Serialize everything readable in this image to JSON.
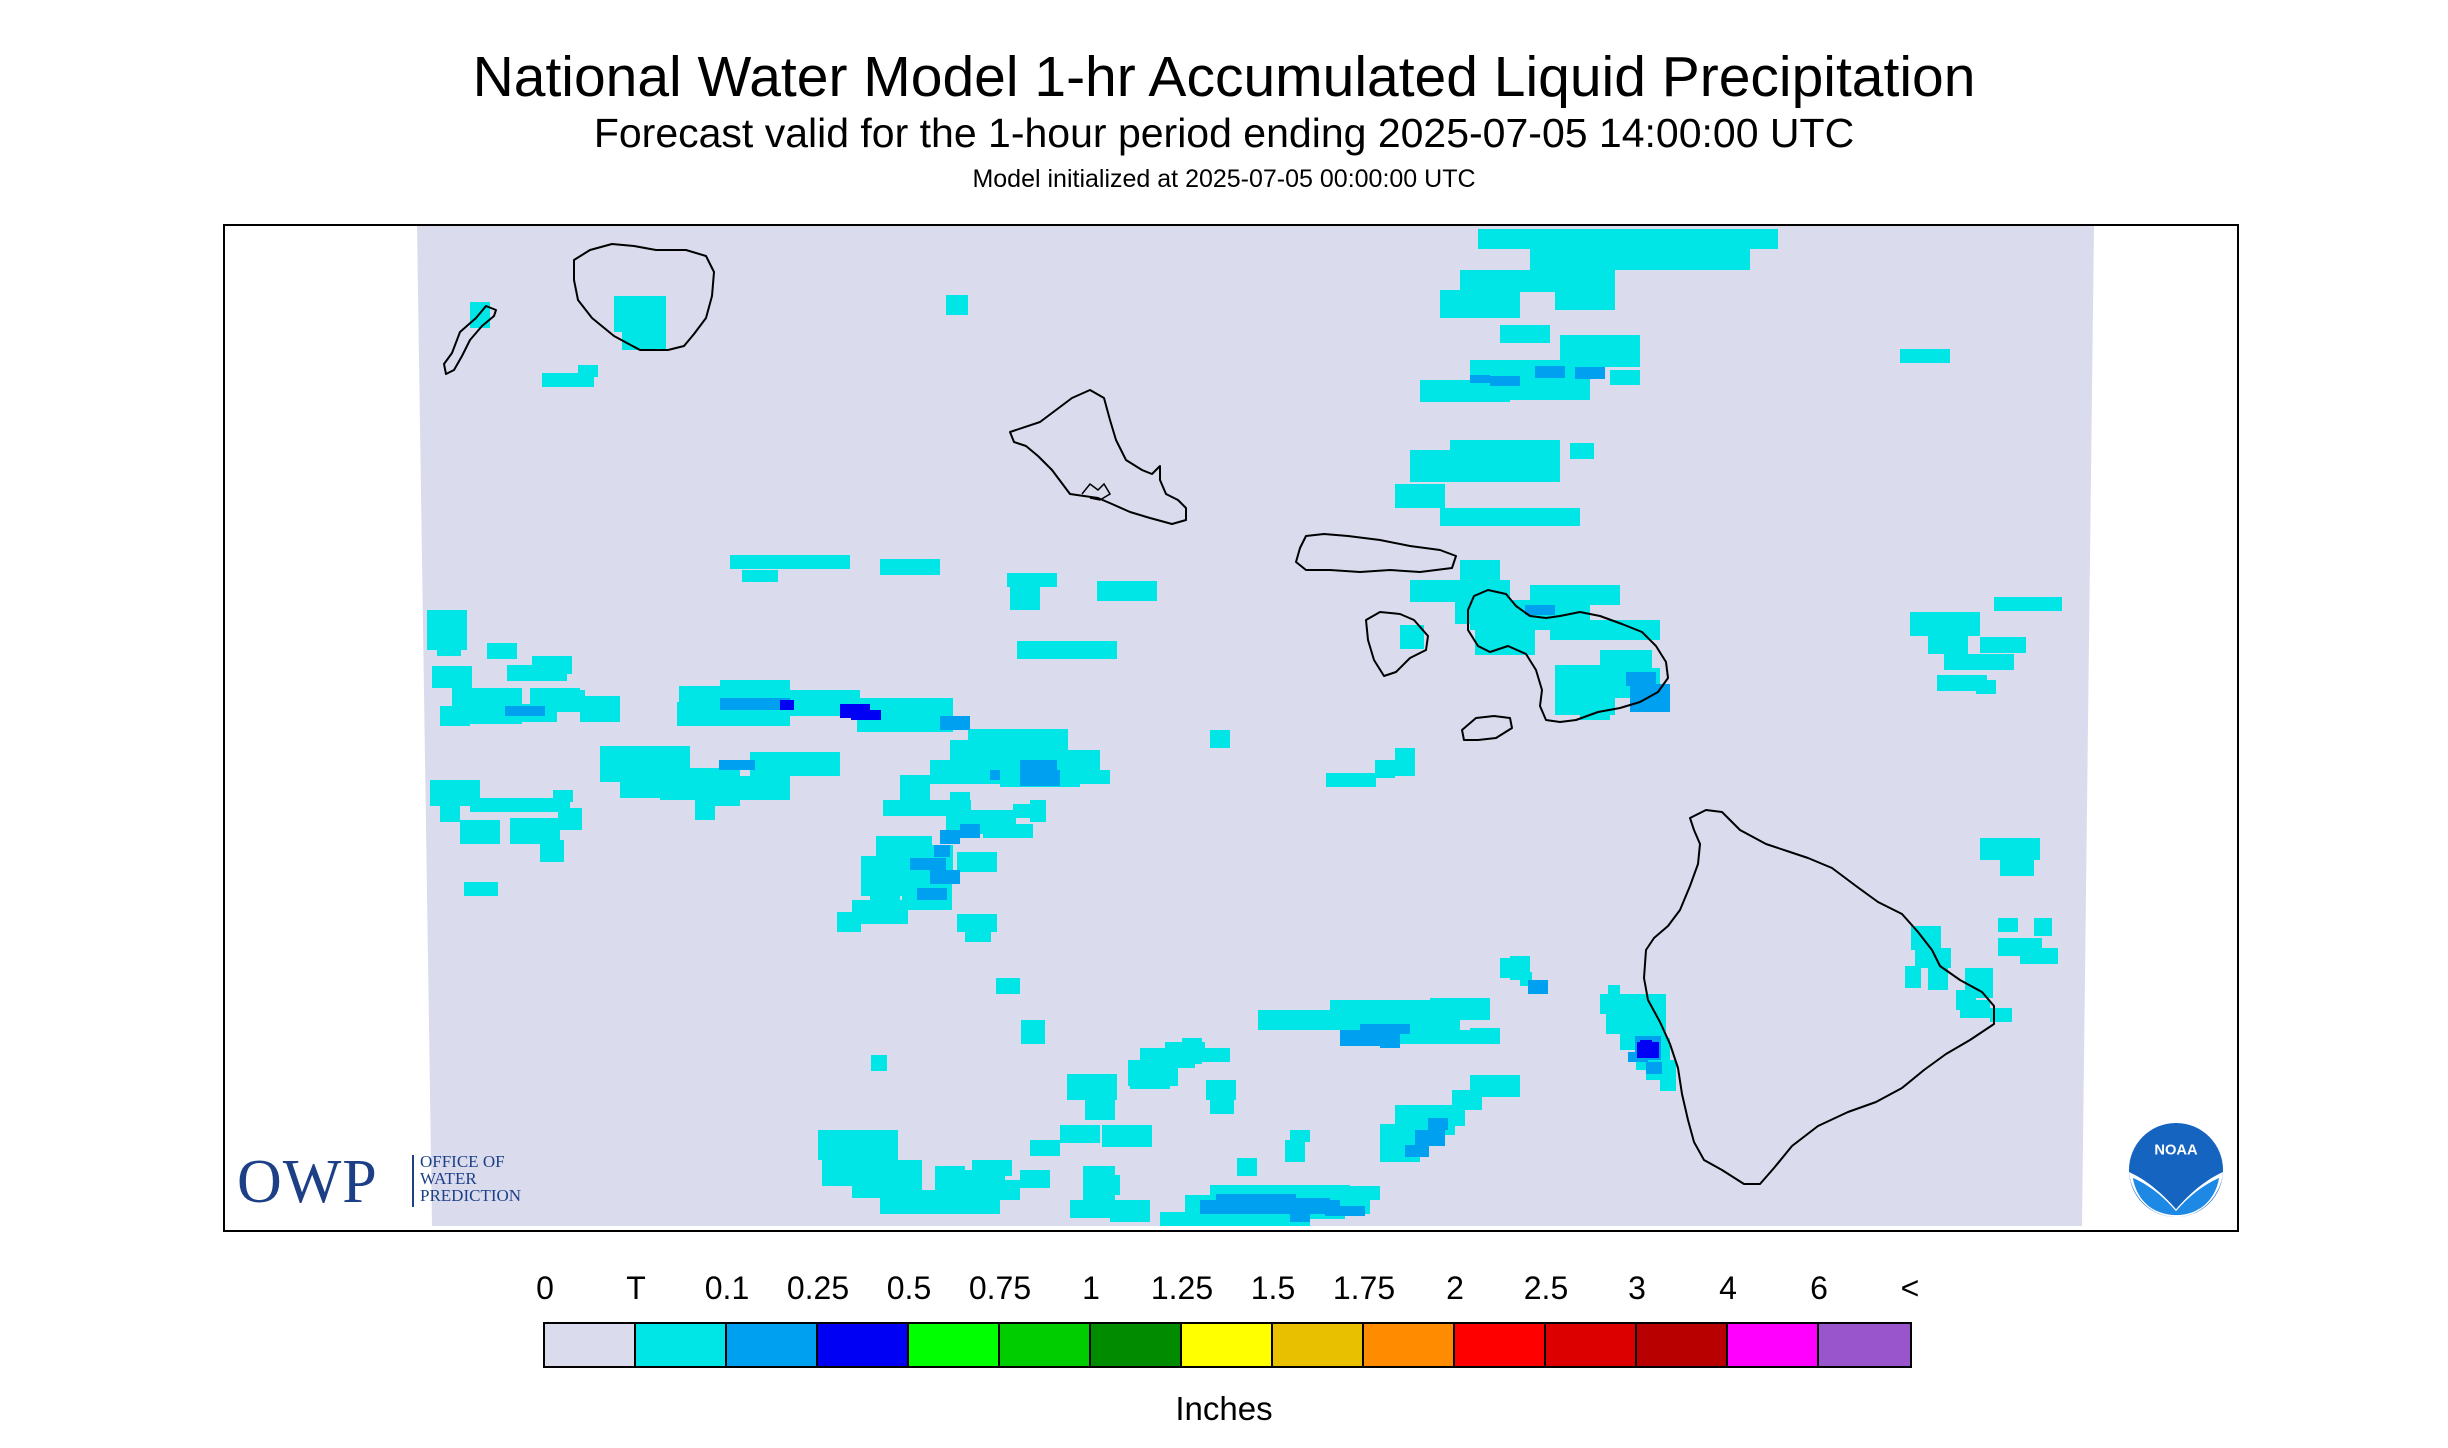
{
  "header": {
    "title": "National Water Model 1-hr Accumulated Liquid Precipitation",
    "subtitle": "Forecast valid for the 1-hour period ending 2025-07-05 14:00:00 UTC",
    "init": "Model initialized at 2025-07-05 00:00:00 UTC"
  },
  "logos": {
    "owp_letters": "OWP",
    "owp_line1": "OFFICE OF",
    "owp_line2": "WATER",
    "owp_line3": "PREDICTION",
    "noaa_text": "NOAA",
    "noaa_color": "#1565c0"
  },
  "map": {
    "background_color": "#ffffff",
    "domain_color": "#dadcee",
    "trace_color": "#00e5e5",
    "light_color": "#00a0f0",
    "heavy_color": "#0000f5",
    "coast_color": "#000000"
  },
  "legend": {
    "labels": [
      "0",
      "T",
      "0.1",
      "0.25",
      "0.5",
      "0.75",
      "1",
      "1.25",
      "1.5",
      "1.75",
      "2",
      "2.5",
      "3",
      "4",
      "6",
      "<"
    ],
    "colors": [
      "#dadcee",
      "#00e5e5",
      "#00a0f0",
      "#0000f5",
      "#00ff00",
      "#00cd00",
      "#008b00",
      "#ffff00",
      "#e8c000",
      "#ff8c00",
      "#ff0000",
      "#dd0000",
      "#b90000",
      "#ff00ff",
      "#9955cc"
    ],
    "units": "Inches"
  }
}
